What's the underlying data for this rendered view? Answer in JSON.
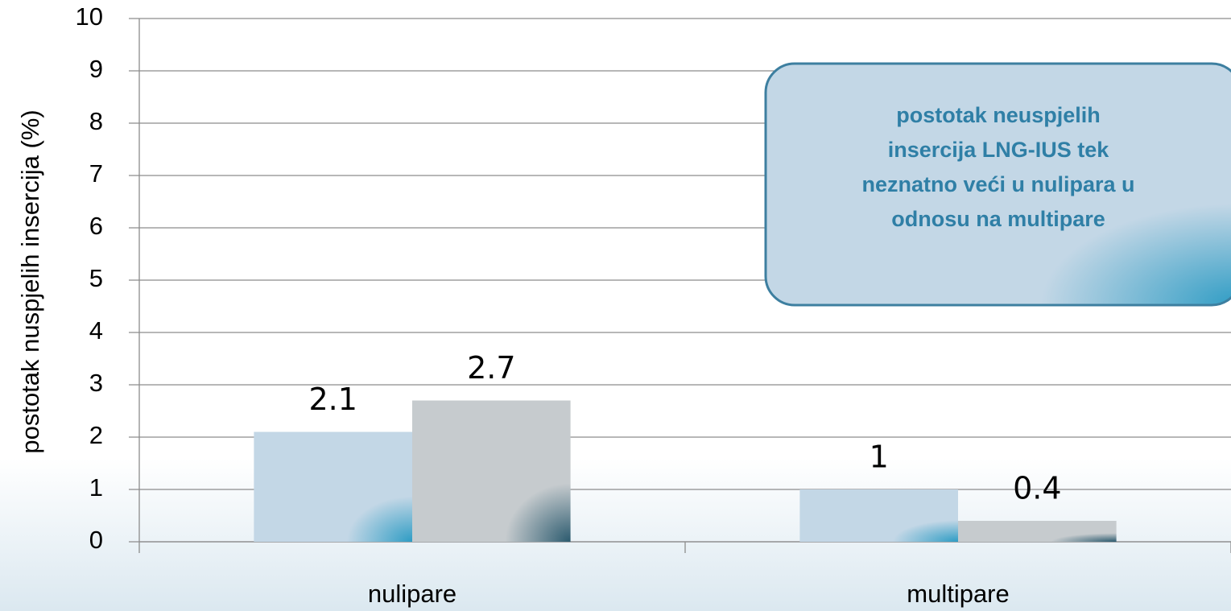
{
  "chart_data": {
    "type": "bar",
    "y_label": "postotak nuspjelih insercija (%)",
    "categories": [
      "nulipare",
      "multipare"
    ],
    "series": [
      {
        "color": "#c3d7e6",
        "values": [
          2.1,
          1
        ]
      },
      {
        "color": "#c6cbce",
        "values": [
          2.7,
          0.4
        ]
      }
    ],
    "ylim": [
      0,
      10
    ],
    "yticks": [
      0,
      1,
      2,
      3,
      4,
      5,
      6,
      7,
      8,
      9,
      10
    ],
    "grid": true,
    "annotation": [
      "postotak neuspjelih",
      "insercija LNG-IUS tek",
      "neznatno veći u nulipara u",
      "odnosu na multipare"
    ]
  }
}
